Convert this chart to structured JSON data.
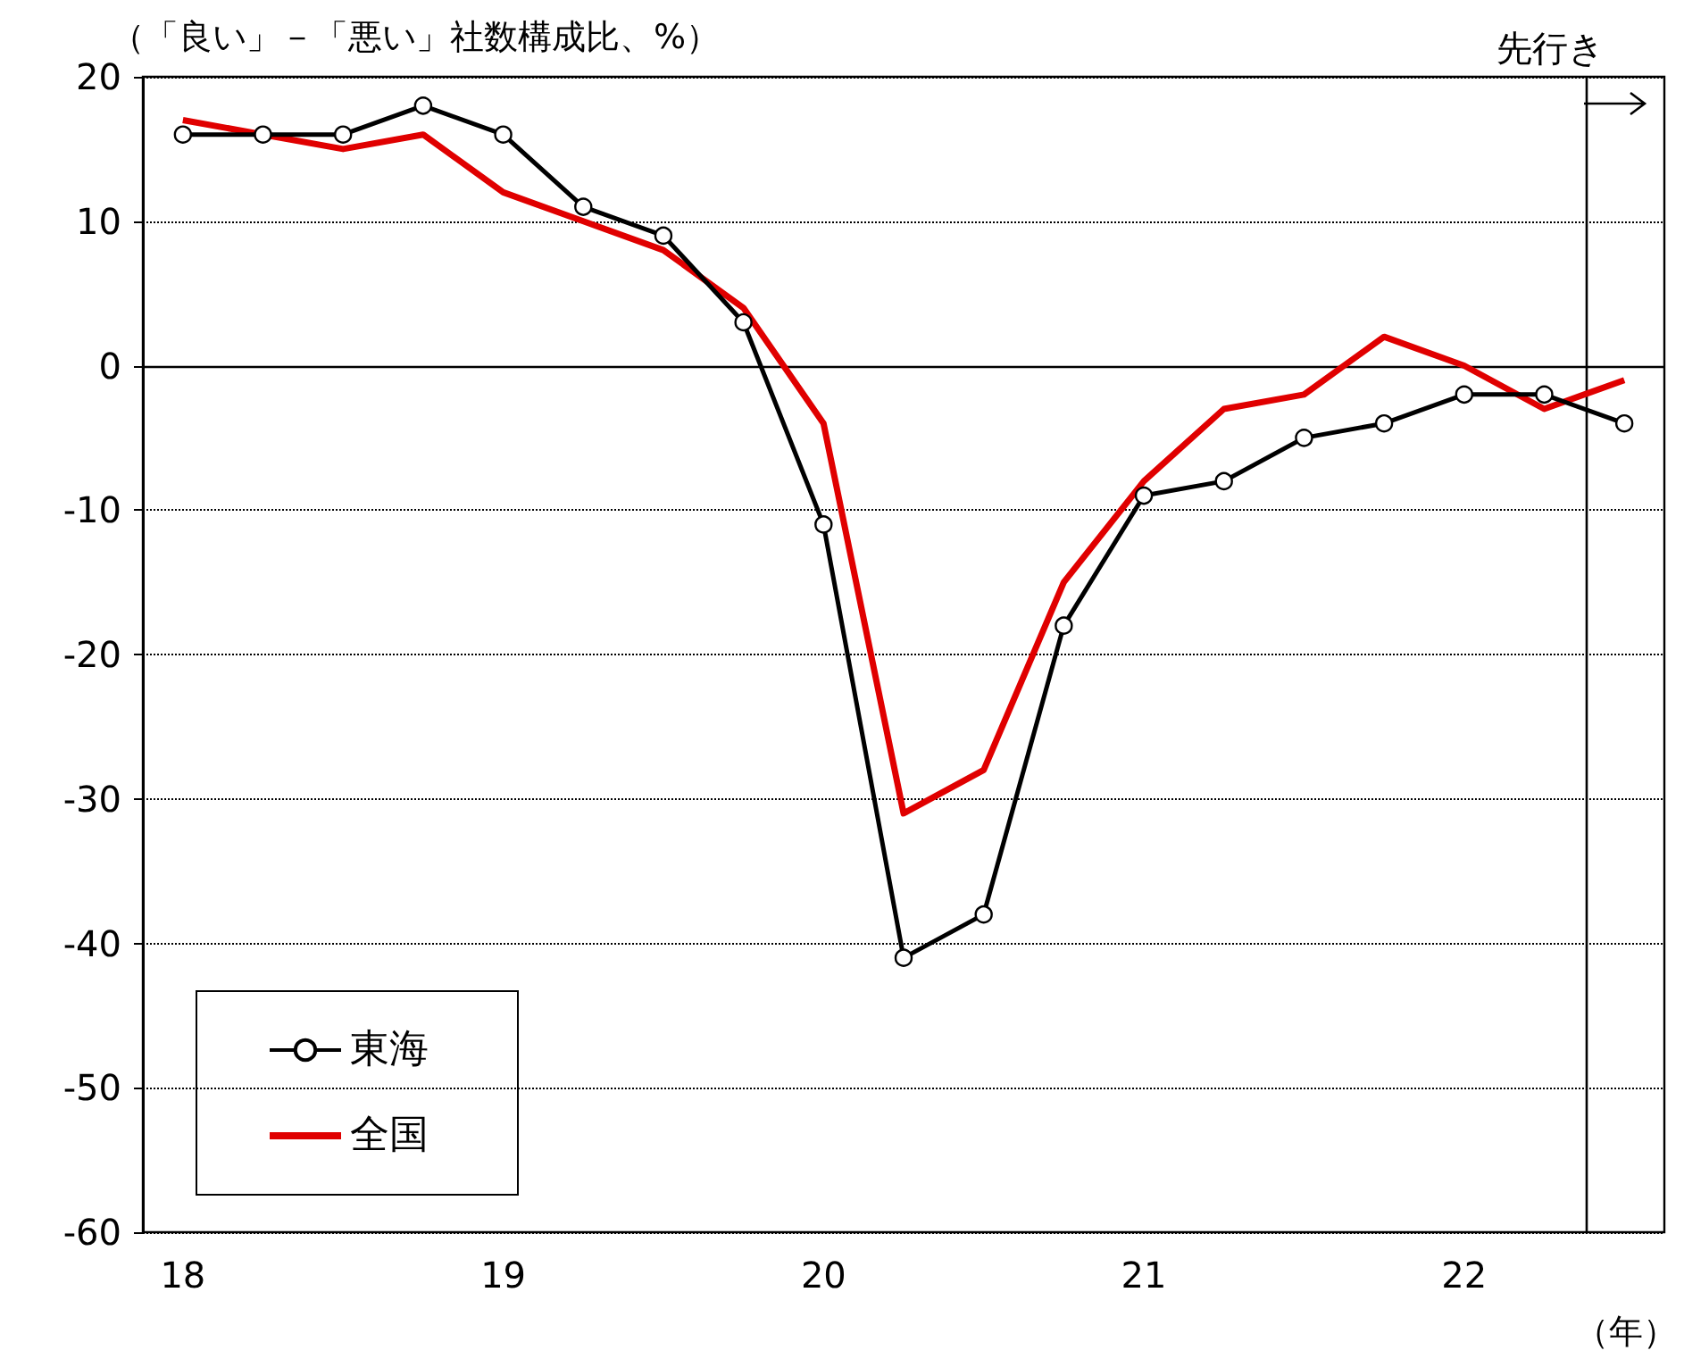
{
  "chart_data": {
    "type": "line",
    "ylabel": "（「良い」－「悪い」社数構成比、%）",
    "xlabel": "（年）",
    "x": [
      2018,
      2018.25,
      2018.5,
      2018.75,
      2019,
      2019.25,
      2019.5,
      2019.75,
      2020,
      2020.25,
      2020.5,
      2020.75,
      2021,
      2021.25,
      2021.5,
      2021.75,
      2022,
      2022.25,
      2022.5
    ],
    "xlim": [
      2017.875,
      2022.625
    ],
    "xticks": [
      {
        "value": 2018,
        "label": "18"
      },
      {
        "value": 2019,
        "label": "19"
      },
      {
        "value": 2020,
        "label": "20"
      },
      {
        "value": 2021,
        "label": "21"
      },
      {
        "value": 2022,
        "label": "22"
      }
    ],
    "ylim": [
      -60,
      20
    ],
    "yticks": [
      -60,
      -50,
      -40,
      -30,
      -20,
      -10,
      0,
      10,
      20
    ],
    "grid": "y",
    "legend": "bottom left",
    "series": [
      {
        "name": "東海",
        "color": "#000000",
        "marker": "circle",
        "values": [
          16,
          16,
          16,
          18,
          16,
          11,
          9,
          3,
          -11,
          -41,
          -38,
          -18,
          -9,
          -8,
          -5,
          -4,
          -2,
          -2,
          -4
        ]
      },
      {
        "name": "全国",
        "color": "#e00000",
        "marker": "none",
        "values": [
          17,
          16,
          15,
          16,
          12,
          10,
          8,
          4,
          -4,
          -31,
          -28,
          -15,
          -8,
          -3,
          -2,
          2,
          0,
          -3,
          -1
        ]
      }
    ],
    "ref_lines": [
      {
        "axis": "y",
        "value": 0,
        "color": "#000000",
        "line_style": "solid"
      },
      {
        "axis": "x",
        "value": 2022.375,
        "label": "先行き",
        "color": "#000000",
        "line_style": "solid"
      }
    ]
  }
}
